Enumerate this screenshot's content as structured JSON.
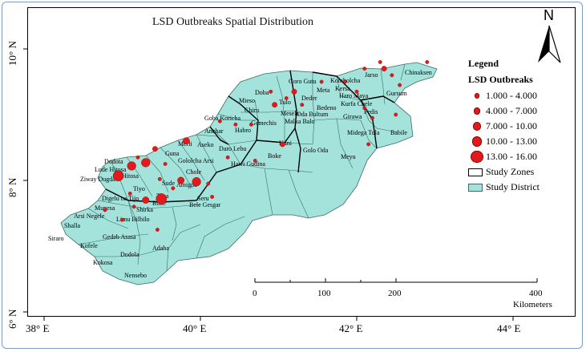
{
  "title": "LSD Outbreaks Spatial Distribution",
  "axes": {
    "lon_labels": [
      "38° E",
      "40° E",
      "42° E",
      "44° E"
    ],
    "lat_labels": [
      "10° N",
      "8° N",
      "6° N"
    ]
  },
  "north_arrow": {
    "label": "N"
  },
  "legend": {
    "heading": "Legend",
    "subheading": "LSD Outbreaks",
    "classes": [
      {
        "label": "1.000 - 4.000",
        "range": [
          1,
          4
        ]
      },
      {
        "label": "4.000 - 7.000",
        "range": [
          4,
          7
        ]
      },
      {
        "label": "7.000 - 10.00",
        "range": [
          7,
          10
        ]
      },
      {
        "label": "10.00 - 13.00",
        "range": [
          10,
          13
        ]
      },
      {
        "label": "13.00 - 16.00",
        "range": [
          13,
          16
        ]
      }
    ],
    "study_zones_label": "Study Zones",
    "study_district_label": "Study District",
    "colors": {
      "outbreak": "#e31a1c",
      "district": "#a3e3dc",
      "zone_border": "#000000",
      "district_border": "#3a6b66"
    }
  },
  "scale_bar": {
    "ticks": [
      "0",
      "100",
      "200",
      "400"
    ],
    "unit": "Kilometers"
  },
  "districts": [
    "Ziway Dugda",
    "Dodota",
    "Hitosa",
    "Lude Hitosa",
    "Digelu na Tijo",
    "Arsi Negele",
    "Shalla",
    "Siraro",
    "Kofele",
    "Kokosa",
    "Gedeb Asasa",
    "Adaba",
    "Dodola",
    "Nensebo",
    "Shirka",
    "Limu Bilbilo",
    "Munesa",
    "Tiyo",
    "Sude",
    "Amigna",
    "Seru",
    "Bele Gesgar",
    "Robe",
    "Tena",
    "Chole",
    "Gololcha Arsi",
    "Guna",
    "Merti",
    "Aseko",
    "Anchar",
    "Daro Lebu",
    "Hawi Gudina",
    "Boke",
    "Kuni",
    "Golo Oda",
    "Meyu",
    "Habro",
    "Gemechis",
    "Mieso",
    "Doba",
    "Tulo",
    "Chiro",
    "Mesela",
    "Malka Balo",
    "Bedeno",
    "Oda Bultum",
    "Goro Gutu",
    "Meta",
    "Kombolcha",
    "Jarso",
    "Kersa",
    "Haro Maya",
    "Kurfa Chele",
    "Girawa",
    "Fedis",
    "Midega Tola",
    "Babile",
    "Gursum",
    "Chinaksen",
    "Gola Oda",
    "Goba Koricha",
    "Deder"
  ],
  "outbreaks": [
    {
      "lon": 38.95,
      "lat": 8.07,
      "value": 15
    },
    {
      "lon": 39.12,
      "lat": 8.22,
      "value": 11
    },
    {
      "lon": 39.3,
      "lat": 8.27,
      "value": 12
    },
    {
      "lon": 39.2,
      "lat": 8.35,
      "value": 2
    },
    {
      "lon": 39.42,
      "lat": 8.48,
      "value": 6
    },
    {
      "lon": 39.82,
      "lat": 8.6,
      "value": 8
    },
    {
      "lon": 39.55,
      "lat": 8.25,
      "value": 3
    },
    {
      "lon": 39.48,
      "lat": 8.02,
      "value": 3
    },
    {
      "lon": 39.75,
      "lat": 8.0,
      "value": 9
    },
    {
      "lon": 39.95,
      "lat": 7.98,
      "value": 11
    },
    {
      "lon": 40.1,
      "lat": 7.95,
      "value": 3
    },
    {
      "lon": 39.65,
      "lat": 7.88,
      "value": 3
    },
    {
      "lon": 39.5,
      "lat": 7.72,
      "value": 14
    },
    {
      "lon": 39.3,
      "lat": 7.7,
      "value": 9
    },
    {
      "lon": 39.1,
      "lat": 7.8,
      "value": 3
    },
    {
      "lon": 38.78,
      "lat": 7.55,
      "value": 3
    },
    {
      "lon": 39.0,
      "lat": 7.4,
      "value": 2
    },
    {
      "lon": 39.45,
      "lat": 7.25,
      "value": 2
    },
    {
      "lon": 39.15,
      "lat": 7.6,
      "value": 2
    },
    {
      "lon": 40.15,
      "lat": 7.75,
      "value": 2
    },
    {
      "lon": 40.35,
      "lat": 8.35,
      "value": 2
    },
    {
      "lon": 40.25,
      "lat": 8.9,
      "value": 2
    },
    {
      "lon": 40.45,
      "lat": 8.85,
      "value": 2
    },
    {
      "lon": 40.65,
      "lat": 8.85,
      "value": 3
    },
    {
      "lon": 40.7,
      "lat": 8.3,
      "value": 3
    },
    {
      "lon": 41.05,
      "lat": 8.55,
      "value": 6
    },
    {
      "lon": 40.95,
      "lat": 9.15,
      "value": 4
    },
    {
      "lon": 41.2,
      "lat": 9.35,
      "value": 6
    },
    {
      "lon": 41.3,
      "lat": 9.15,
      "value": 2
    },
    {
      "lon": 41.1,
      "lat": 9.25,
      "value": 3
    },
    {
      "lon": 40.9,
      "lat": 9.35,
      "value": 3
    },
    {
      "lon": 41.55,
      "lat": 9.5,
      "value": 2
    },
    {
      "lon": 41.85,
      "lat": 9.5,
      "value": 2
    },
    {
      "lon": 42.1,
      "lat": 9.7,
      "value": 2
    },
    {
      "lon": 42.0,
      "lat": 9.35,
      "value": 2
    },
    {
      "lon": 42.1,
      "lat": 9.1,
      "value": 2
    },
    {
      "lon": 42.2,
      "lat": 8.95,
      "value": 2
    },
    {
      "lon": 42.15,
      "lat": 8.55,
      "value": 2
    },
    {
      "lon": 42.3,
      "lat": 9.8,
      "value": 2
    },
    {
      "lon": 42.35,
      "lat": 9.7,
      "value": 6
    },
    {
      "lon": 42.45,
      "lat": 9.6,
      "value": 2
    },
    {
      "lon": 42.55,
      "lat": 9.45,
      "value": 2
    },
    {
      "lon": 42.9,
      "lat": 9.8,
      "value": 3
    },
    {
      "lon": 42.5,
      "lat": 9.0,
      "value": 2
    }
  ]
}
